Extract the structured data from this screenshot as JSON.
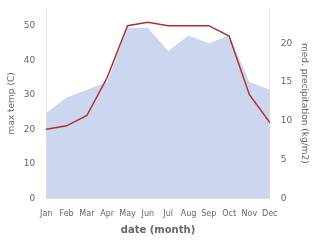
{
  "chart_data": {
    "type": "line",
    "categories": [
      "Jan",
      "Feb",
      "Mar",
      "Apr",
      "May",
      "Jun",
      "Jul",
      "Aug",
      "Sep",
      "Oct",
      "Nov",
      "Dec"
    ],
    "series": [
      {
        "type": "area",
        "axis": "y2",
        "color": "#b8c4e8",
        "values": [
          11,
          13,
          14,
          15,
          22,
          22,
          19,
          21,
          20,
          21,
          15,
          14
        ]
      },
      {
        "type": "line",
        "color": "#b03030",
        "values": [
          20,
          21,
          24,
          35,
          50,
          51,
          50,
          50,
          50,
          47,
          30,
          22
        ]
      }
    ],
    "xlabel": "date (month)",
    "ylabel": "max temp (C)",
    "y2label": "med. precipitation (kg/m2)",
    "ylim": [
      0,
      55
    ],
    "yticks": [
      0,
      10,
      20,
      30,
      40,
      50
    ],
    "y2lim": [
      0,
      24.5
    ],
    "y2ticks": [
      0,
      5,
      10,
      15,
      20
    ],
    "grid": false
  }
}
